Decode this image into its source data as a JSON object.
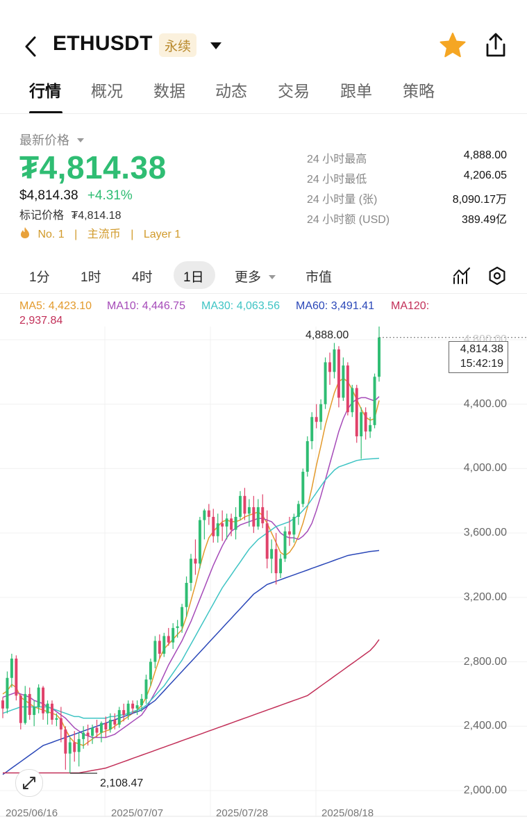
{
  "header": {
    "title": "ETHUSDT",
    "badge": "永续",
    "back_icon": "chevron-left-icon",
    "star_color": "#f5a623"
  },
  "tabs": [
    {
      "label": "行情",
      "active": true
    },
    {
      "label": "概况"
    },
    {
      "label": "数据"
    },
    {
      "label": "动态"
    },
    {
      "label": "交易"
    },
    {
      "label": "跟单"
    },
    {
      "label": "策略"
    }
  ],
  "price": {
    "section_label": "最新价格",
    "last": "₮4,814.38",
    "usd": "$4,814.38",
    "change": "+4.31%",
    "mark_label": "标记价格",
    "mark_value": "₮4,814.18",
    "up_color": "#2fbd73",
    "down_color": "#e0426a"
  },
  "stats": [
    {
      "label": "24 小时最高",
      "value": "4,888.00"
    },
    {
      "label": "24 小时最低",
      "value": "4,206.05"
    },
    {
      "label": "24 小时量 (张)",
      "value": "8,090.17万"
    },
    {
      "label": "24 小时额 (USD)",
      "value": "389.49亿"
    }
  ],
  "tags": {
    "rank": "No. 1",
    "t1": "主流币",
    "t2": "Layer 1",
    "sep": "|"
  },
  "timeframes": [
    {
      "label": "1分"
    },
    {
      "label": "1时"
    },
    {
      "label": "4时"
    },
    {
      "label": "1日",
      "active": true
    },
    {
      "label": "更多"
    },
    {
      "label": "市值"
    }
  ],
  "ma": {
    "ma5": "MA5: 4,423.10",
    "ma10": "MA10: 4,446.75",
    "ma30": "MA30: 4,063.56",
    "ma60": "MA60: 3,491.41",
    "ma120_label": "MA120:",
    "ma120_value": "2,937.84",
    "colors": {
      "ma5": "#e39a2c",
      "ma10": "#a54ab8",
      "ma30": "#3ec4c4",
      "ma60": "#2a47b8",
      "ma120": "#c22f58"
    }
  },
  "chart_data": {
    "type": "candlestick",
    "y_ticks": [
      "4,800.00",
      "4,400.00",
      "4,000.00",
      "3,600.00",
      "3,200.00",
      "2,800.00",
      "2,400.00",
      "2,000.00"
    ],
    "ylim": [
      2000,
      4800
    ],
    "x_ticks": [
      "2025/06/16",
      "2025/07/07",
      "2025/07/28",
      "2025/08/18"
    ],
    "high_marker": "4,888.00",
    "low_marker": "2,108.47",
    "current_price_box": "4,814.38",
    "current_time_box": "15:42:19",
    "candles": [
      [
        2560,
        2580,
        2450,
        2510
      ],
      [
        2510,
        2740,
        2480,
        2700
      ],
      [
        2700,
        2850,
        2640,
        2820
      ],
      [
        2820,
        2840,
        2560,
        2590
      ],
      [
        2590,
        2600,
        2380,
        2420
      ],
      [
        2420,
        2650,
        2410,
        2600
      ],
      [
        2600,
        2640,
        2440,
        2470
      ],
      [
        2470,
        2560,
        2400,
        2520
      ],
      [
        2520,
        2660,
        2480,
        2640
      ],
      [
        2640,
        2650,
        2440,
        2480
      ],
      [
        2480,
        2560,
        2410,
        2540
      ],
      [
        2540,
        2560,
        2410,
        2440
      ],
      [
        2440,
        2480,
        2400,
        2450
      ],
      [
        2450,
        2520,
        2300,
        2380
      ],
      [
        2380,
        2400,
        2130,
        2230
      ],
      [
        2230,
        2330,
        2108,
        2300
      ],
      [
        2300,
        2370,
        2180,
        2240
      ],
      [
        2240,
        2360,
        2150,
        2320
      ],
      [
        2320,
        2400,
        2260,
        2360
      ],
      [
        2360,
        2410,
        2280,
        2340
      ],
      [
        2340,
        2410,
        2290,
        2390
      ],
      [
        2390,
        2440,
        2330,
        2360
      ],
      [
        2360,
        2430,
        2300,
        2420
      ],
      [
        2420,
        2460,
        2330,
        2380
      ],
      [
        2380,
        2480,
        2360,
        2440
      ],
      [
        2440,
        2480,
        2380,
        2410
      ],
      [
        2410,
        2520,
        2390,
        2500
      ],
      [
        2500,
        2540,
        2430,
        2470
      ],
      [
        2470,
        2560,
        2440,
        2540
      ],
      [
        2540,
        2560,
        2480,
        2510
      ],
      [
        2510,
        2560,
        2470,
        2530
      ],
      [
        2530,
        2600,
        2490,
        2570
      ],
      [
        2570,
        2720,
        2540,
        2690
      ],
      [
        2690,
        2820,
        2650,
        2800
      ],
      [
        2800,
        2960,
        2760,
        2930
      ],
      [
        2930,
        2970,
        2820,
        2850
      ],
      [
        2850,
        2980,
        2830,
        2960
      ],
      [
        2960,
        3010,
        2900,
        2920
      ],
      [
        2920,
        3040,
        2880,
        3010
      ],
      [
        3010,
        3060,
        2950,
        3020
      ],
      [
        3020,
        3160,
        2980,
        3140
      ],
      [
        3140,
        3330,
        3080,
        3290
      ],
      [
        3290,
        3470,
        3240,
        3440
      ],
      [
        3440,
        3560,
        3340,
        3410
      ],
      [
        3410,
        3700,
        3380,
        3680
      ],
      [
        3680,
        3750,
        3560,
        3740
      ],
      [
        3740,
        3780,
        3650,
        3700
      ],
      [
        3700,
        3750,
        3540,
        3580
      ],
      [
        3580,
        3720,
        3540,
        3660
      ],
      [
        3660,
        3740,
        3550,
        3640
      ],
      [
        3640,
        3720,
        3560,
        3690
      ],
      [
        3690,
        3720,
        3580,
        3620
      ],
      [
        3620,
        3760,
        3560,
        3700
      ],
      [
        3700,
        3860,
        3680,
        3830
      ],
      [
        3830,
        3880,
        3680,
        3720
      ],
      [
        3720,
        3810,
        3640,
        3760
      ],
      [
        3760,
        3830,
        3600,
        3640
      ],
      [
        3640,
        3810,
        3620,
        3760
      ],
      [
        3760,
        3840,
        3630,
        3660
      ],
      [
        3660,
        3740,
        3380,
        3440
      ],
      [
        3440,
        3560,
        3350,
        3500
      ],
      [
        3500,
        3600,
        3280,
        3350
      ],
      [
        3350,
        3470,
        3320,
        3440
      ],
      [
        3440,
        3640,
        3420,
        3610
      ],
      [
        3610,
        3700,
        3520,
        3590
      ],
      [
        3590,
        3720,
        3540,
        3700
      ],
      [
        3700,
        3800,
        3650,
        3780
      ],
      [
        3780,
        4000,
        3760,
        3980
      ],
      [
        3980,
        4200,
        3950,
        4170
      ],
      [
        4170,
        4350,
        4120,
        4320
      ],
      [
        4320,
        4400,
        4250,
        4290
      ],
      [
        4290,
        4430,
        4240,
        4400
      ],
      [
        4400,
        4690,
        4370,
        4660
      ],
      [
        4660,
        4720,
        4520,
        4600
      ],
      [
        4600,
        4780,
        4560,
        4740
      ],
      [
        4740,
        4760,
        4380,
        4440
      ],
      [
        4440,
        4690,
        4420,
        4640
      ],
      [
        4640,
        4660,
        4330,
        4350
      ],
      [
        4350,
        4520,
        4320,
        4500
      ],
      [
        4500,
        4520,
        4160,
        4200
      ],
      [
        4200,
        4380,
        4060,
        4350
      ],
      [
        4350,
        4380,
        4180,
        4230
      ],
      [
        4230,
        4320,
        4190,
        4270
      ],
      [
        4270,
        4590,
        4250,
        4570
      ],
      [
        4570,
        4888,
        4540,
        4814
      ]
    ],
    "series": [
      {
        "name": "MA5",
        "values": [
          2600,
          2620,
          2660,
          2640,
          2580,
          2560,
          2540,
          2520,
          2510,
          2500,
          2490,
          2480,
          2470,
          2440,
          2380,
          2330,
          2300,
          2290,
          2280,
          2300,
          2320,
          2340,
          2360,
          2370,
          2380,
          2400,
          2420,
          2440,
          2460,
          2480,
          2500,
          2530,
          2580,
          2650,
          2740,
          2820,
          2880,
          2910,
          2940,
          2970,
          3000,
          3080,
          3180,
          3280,
          3390,
          3490,
          3570,
          3610,
          3640,
          3670,
          3680,
          3670,
          3670,
          3680,
          3700,
          3710,
          3720,
          3730,
          3710,
          3660,
          3600,
          3540,
          3480,
          3460,
          3480,
          3520,
          3580,
          3660,
          3760,
          3880,
          4020,
          4140,
          4270,
          4370,
          4470,
          4540,
          4560,
          4540,
          4490,
          4430,
          4370,
          4320,
          4300,
          4310,
          4423
        ]
      },
      {
        "name": "MA10",
        "values": [
          2580,
          2590,
          2600,
          2610,
          2600,
          2590,
          2580,
          2560,
          2550,
          2540,
          2520,
          2510,
          2490,
          2470,
          2450,
          2420,
          2390,
          2370,
          2350,
          2340,
          2330,
          2330,
          2330,
          2330,
          2340,
          2350,
          2370,
          2390,
          2410,
          2430,
          2450,
          2470,
          2510,
          2560,
          2610,
          2660,
          2720,
          2780,
          2830,
          2880,
          2930,
          2990,
          3050,
          3120,
          3190,
          3260,
          3330,
          3400,
          3460,
          3520,
          3570,
          3610,
          3630,
          3650,
          3660,
          3670,
          3680,
          3690,
          3690,
          3680,
          3670,
          3640,
          3600,
          3580,
          3570,
          3570,
          3560,
          3580,
          3610,
          3660,
          3740,
          3830,
          3930,
          4030,
          4130,
          4230,
          4310,
          4370,
          4410,
          4430,
          4440,
          4440,
          4430,
          4420,
          4447
        ]
      },
      {
        "name": "MA30",
        "values": [
          2480,
          2490,
          2500,
          2510,
          2520,
          2520,
          2520,
          2520,
          2520,
          2520,
          2520,
          2510,
          2500,
          2490,
          2480,
          2470,
          2460,
          2460,
          2450,
          2450,
          2450,
          2450,
          2450,
          2450,
          2460,
          2460,
          2470,
          2470,
          2480,
          2490,
          2500,
          2510,
          2530,
          2560,
          2590,
          2620,
          2650,
          2690,
          2730,
          2770,
          2810,
          2860,
          2910,
          2960,
          3010,
          3060,
          3110,
          3160,
          3210,
          3260,
          3300,
          3340,
          3380,
          3420,
          3460,
          3500,
          3530,
          3560,
          3580,
          3600,
          3620,
          3640,
          3650,
          3660,
          3670,
          3690,
          3710,
          3740,
          3770,
          3810,
          3850,
          3890,
          3930,
          3960,
          3990,
          4010,
          4020,
          4030,
          4040,
          4050,
          4055,
          4058,
          4060,
          4062,
          4064
        ]
      },
      {
        "name": "MA60",
        "values": [
          2100,
          2120,
          2140,
          2160,
          2180,
          2200,
          2220,
          2240,
          2260,
          2280,
          2290,
          2300,
          2310,
          2320,
          2330,
          2340,
          2350,
          2360,
          2370,
          2380,
          2390,
          2400,
          2410,
          2420,
          2430,
          2440,
          2450,
          2460,
          2470,
          2480,
          2490,
          2500,
          2520,
          2540,
          2560,
          2590,
          2620,
          2650,
          2680,
          2710,
          2740,
          2770,
          2800,
          2830,
          2860,
          2890,
          2920,
          2950,
          2980,
          3010,
          3040,
          3070,
          3100,
          3130,
          3160,
          3190,
          3220,
          3240,
          3260,
          3280,
          3290,
          3300,
          3310,
          3320,
          3330,
          3340,
          3350,
          3360,
          3370,
          3380,
          3390,
          3400,
          3410,
          3420,
          3430,
          3440,
          3450,
          3460,
          3465,
          3470,
          3475,
          3480,
          3485,
          3488,
          3491
        ]
      },
      {
        "name": "MA120",
        "values": [
          2110,
          2110,
          2110,
          2110,
          2110,
          2110,
          2110,
          2110,
          2110,
          2110,
          2110,
          2110,
          2110,
          2110,
          2110,
          2110,
          2110,
          2110,
          2115,
          2120,
          2125,
          2130,
          2135,
          2140,
          2150,
          2160,
          2170,
          2180,
          2190,
          2200,
          2210,
          2220,
          2230,
          2240,
          2250,
          2260,
          2270,
          2280,
          2290,
          2300,
          2310,
          2320,
          2330,
          2340,
          2350,
          2360,
          2370,
          2380,
          2390,
          2400,
          2410,
          2420,
          2430,
          2440,
          2450,
          2460,
          2470,
          2480,
          2490,
          2500,
          2510,
          2520,
          2530,
          2540,
          2550,
          2560,
          2570,
          2580,
          2590,
          2610,
          2630,
          2650,
          2670,
          2690,
          2710,
          2730,
          2750,
          2770,
          2790,
          2810,
          2830,
          2850,
          2870,
          2900,
          2938
        ]
      }
    ]
  }
}
